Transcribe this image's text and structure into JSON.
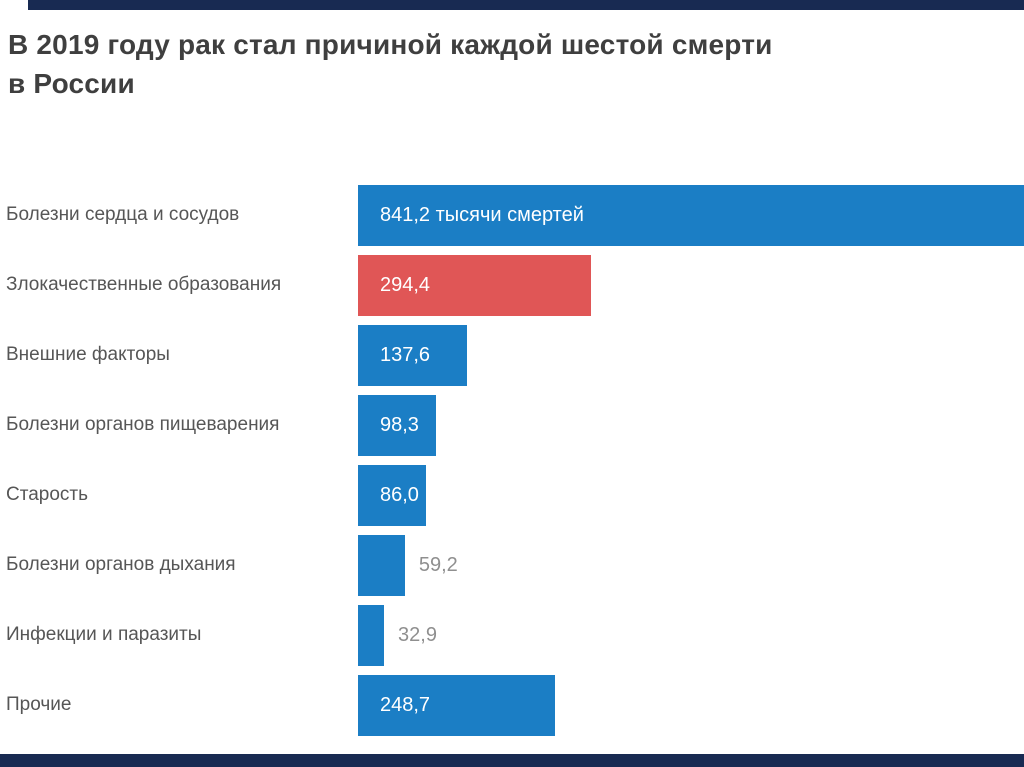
{
  "title": {
    "line1": "В 2019 году рак стал причиной каждой шестой смерти",
    "line2": "в России"
  },
  "chart_data": {
    "type": "bar",
    "orientation": "horizontal",
    "title": "В 2019 году рак стал причиной каждой шестой смерти в России",
    "unit_note": "тысячи смертей",
    "axis_max": 841.2,
    "legend": "none",
    "grid": false,
    "categories": [
      "Болезни сердца и сосудов",
      "Злокачественные образования",
      "Внешние факторы",
      "Болезни органов пищеварения",
      "Старость",
      "Болезни органов дыхания",
      "Инфекции и паразиты",
      "Прочие"
    ],
    "values": [
      841.2,
      294.4,
      137.6,
      98.3,
      86.0,
      59.2,
      32.9,
      248.7
    ],
    "rows": [
      {
        "label": "Болезни сердца и сосудов",
        "value": 841.2,
        "value_label": "841,2 тысячи смертей",
        "color": "blue",
        "label_position": "inside"
      },
      {
        "label": "Злокачественные образования",
        "value": 294.4,
        "value_label": "294,4",
        "color": "red",
        "label_position": "inside"
      },
      {
        "label": "Внешние факторы",
        "value": 137.6,
        "value_label": "137,6",
        "color": "blue",
        "label_position": "inside"
      },
      {
        "label": "Болезни органов пищеварения",
        "value": 98.3,
        "value_label": "98,3",
        "color": "blue",
        "label_position": "inside"
      },
      {
        "label": "Старость",
        "value": 86.0,
        "value_label": "86,0",
        "color": "blue",
        "label_position": "inside"
      },
      {
        "label": "Болезни органов дыхания",
        "value": 59.2,
        "value_label": "59,2",
        "color": "blue",
        "label_position": "outside"
      },
      {
        "label": "Инфекции и паразиты",
        "value": 32.9,
        "value_label": "32,9",
        "color": "blue",
        "label_position": "outside"
      },
      {
        "label": "Прочие",
        "value": 248.7,
        "value_label": "248,7",
        "color": "blue",
        "label_position": "inside"
      }
    ],
    "colors": {
      "blue": "#1b7ec5",
      "red": "#e05656",
      "value_inside": "#ffffff",
      "value_outside": "#8f8f8f",
      "edge_strip": "#182a52",
      "title_text": "#3f3f3f",
      "category_text": "#565656"
    }
  }
}
